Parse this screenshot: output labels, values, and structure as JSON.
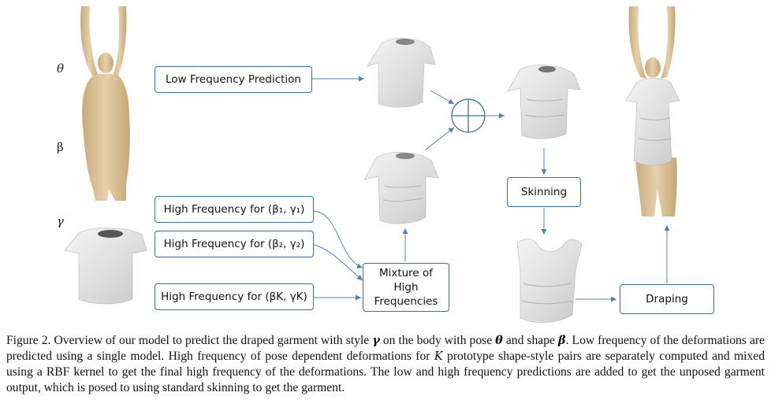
{
  "inputs": {
    "theta": "θ",
    "beta": "β",
    "gamma": "γ"
  },
  "boxes": {
    "low_freq": "Low Frequency Prediction",
    "high1": "High Frequency for (β₁, γ₁)",
    "high2": "High Frequency for (β₂, γ₂)",
    "highK": "High Frequency for (βK, γK)",
    "mixture_lines": [
      "Mixture of",
      "High",
      "Frequencies"
    ],
    "skinning": "Skinning",
    "draping": "Draping"
  },
  "caption": {
    "p1": "Figure 2. Overview of our model to predict the draped garment with style ",
    "p1_gamma": "γ",
    "p2": " on the body with pose ",
    "p2_theta": "θ",
    "p3": " and shape ",
    "p3_beta": "β",
    "p4": ". Low frequency of the deformations are predicted using a single model. High frequency of pose dependent deformations for ",
    "p4_K": "K",
    "p5": " prototype shape-style pairs are separately computed and mixed using a RBF kernel to get the final high frequency of the deformations. The low and high frequency predictions are added to get the unposed garment output, which is posed to using standard skinning to get the garment."
  },
  "colors": {
    "box_border": "#3a6ea8",
    "arrow": "#5580b5",
    "skin": "#d8bf96",
    "garment": "#e6e6e6"
  }
}
